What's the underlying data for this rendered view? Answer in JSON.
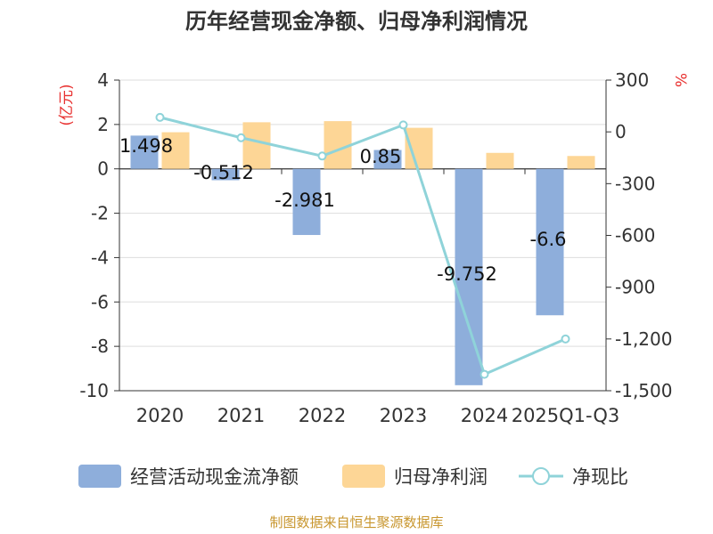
{
  "chart_data": {
    "type": "bar",
    "title": "历年经营现金净额、归母净利润情况",
    "categories": [
      "2020",
      "2021",
      "2022",
      "2023",
      "2024",
      "2025Q1-Q3"
    ],
    "series": [
      {
        "name": "经营活动现金流净额",
        "kind": "bar",
        "axis": "left",
        "color": "#8eaedb",
        "values": [
          1.498,
          -0.512,
          -2.981,
          0.85,
          -9.752,
          -6.6
        ],
        "labels": [
          "1.498",
          "-0.512",
          "-2.981",
          "0.85",
          "-9.752",
          "-6.6"
        ]
      },
      {
        "name": "归母净利润",
        "kind": "bar",
        "axis": "left",
        "color": "#fdd696",
        "values": [
          1.65,
          2.1,
          2.15,
          1.85,
          0.72,
          0.58
        ]
      },
      {
        "name": "净现比",
        "kind": "line",
        "axis": "right",
        "color": "#8fd3d9",
        "values": [
          84,
          -34,
          -140,
          40,
          -1405,
          -1200
        ]
      }
    ],
    "y_left": {
      "unit": "(亿元)",
      "ylim": [
        -10,
        4
      ],
      "ticks": [
        4,
        2,
        0,
        -2,
        -4,
        -6,
        -8,
        -10
      ],
      "tick_labels": [
        "4",
        "2",
        "0",
        "-2",
        "-4",
        "-6",
        "-8",
        "-10"
      ]
    },
    "y_right": {
      "unit": "%",
      "ylim": [
        -1500,
        300
      ],
      "ticks": [
        300,
        0,
        -300,
        -600,
        -900,
        -1200,
        -1500
      ],
      "tick_labels": [
        "300",
        "0",
        "-300",
        "-600",
        "-900",
        "-1,200",
        "-1,500"
      ]
    },
    "legend_position": "bottom",
    "source": "制图数据来自恒生聚源数据库"
  }
}
